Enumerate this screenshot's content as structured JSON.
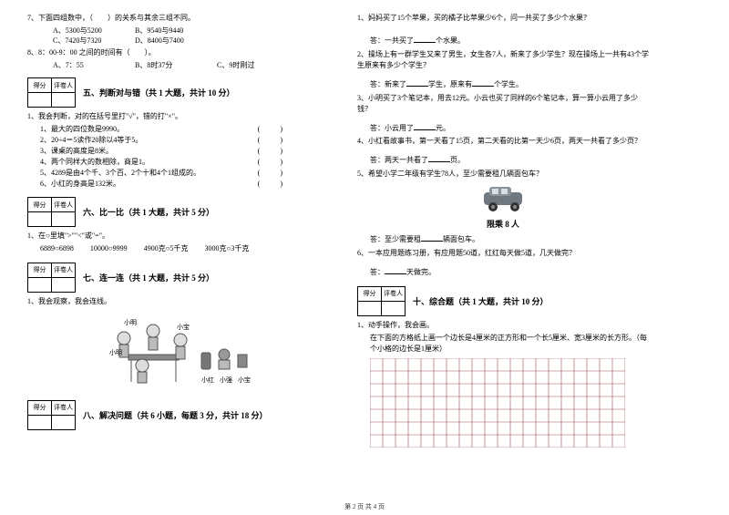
{
  "left": {
    "q7": {
      "stem": "7、下面四组数中，（　　）的关系与其余三组不同。",
      "opts": [
        "A、5300与5200",
        "B、9540与9440",
        "C、7420与7320",
        "D、8400与7400"
      ]
    },
    "q8": {
      "stem": "8、8：00-9：00 之间的时间有（　　）。",
      "opts": [
        "A、7：55",
        "B、8时37分",
        "C、9时刚过"
      ]
    },
    "sec5": {
      "boxL": "得分",
      "boxR": "评卷人",
      "title": "五、判断对与错（共 1 大题，共计 10 分）",
      "lead": "1、我会判断，对的在括号里打\"√\"，错的打\"×\"。",
      "items": [
        "1、最大的四位数是9990。",
        "2、20÷4＝5读作20除以4等于5。",
        "3、课桌的高度是8米。",
        "4、两个同样大的数相除，商是1。",
        "5、4289是由4个千、3个百、2个十和4个1组成的。",
        "6、小红的身高是132米。"
      ]
    },
    "sec6": {
      "boxL": "得分",
      "boxR": "评卷人",
      "title": "六、比一比（共 1 大题，共计 5 分）",
      "lead": "1、在○里填\">\"\"<\"或\"=\"。",
      "row": [
        "6889○6898",
        "10000○9999",
        "4900克○5千克",
        "3000克○3千克"
      ]
    },
    "sec7": {
      "boxL": "得分",
      "boxR": "评卷人",
      "title": "七、连一连（共 1 大题，共计 5 分）",
      "lead": "1、我会观察，我会连线。",
      "labels": {
        "top1": "小明",
        "top2": "小宝",
        "b1": "小红",
        "b2": "小强",
        "b3": "小宝"
      }
    },
    "sec8": {
      "boxL": "得分",
      "boxR": "评卷人",
      "title": "八、解决问题（共 6 小题，每题 3 分，共计 18 分）"
    }
  },
  "right": {
    "q1": {
      "stem": "1、妈妈买了15个苹果，买的橘子比苹果少6个，问一共买了多少个水果？",
      "ans": "答：一共买了____个水果。"
    },
    "q2": {
      "stem": "2、操场上有一群学生又来了男生，女生各7人，新来了多少学生？现在操场上一共有43个学生原来有多少个学生？",
      "ans": "答：新来了____学生，原来有____个学生。"
    },
    "q3": {
      "stem": "3、小明买了3个笔记本，用去12元。小云也买了同样的6个笔记本，算一算小云用了多少钱？",
      "ans": "答：小云用了____元。"
    },
    "q4": {
      "stem": "4、小红看故事书，第一天看了15页，第二天看的比第一天少6页，两天一共看了多少页？",
      "ans": "答：两天一共看了____页。"
    },
    "q5": {
      "stem": "5、希望小学二年级有学生78人，至少需要租几辆面包车？",
      "carLabel": "限乘 8 人",
      "ans": "答：至少需要租____辆面包车。"
    },
    "q6": {
      "stem": "6、一本应用题练习册，有应用题50道，红红每天做5道，几天做完？",
      "ans": "答：____天做完。"
    },
    "sec10": {
      "boxL": "得分",
      "boxR": "评卷人",
      "title": "十、综合题（共 1 大题，共计 10 分）",
      "lead": "1、动手操作，我会画。",
      "desc": "在下面的方格纸上画一个边长是4厘米的正方形和一个长5厘米、宽3厘米的长方形。（每个小格的边长是1厘米）"
    },
    "grid": {
      "cols": 20,
      "rows": 7,
      "cell": 14,
      "lineColor": "#a05050",
      "lineWidth": 0.6
    }
  },
  "footer": "第 2 页 共 4 页"
}
